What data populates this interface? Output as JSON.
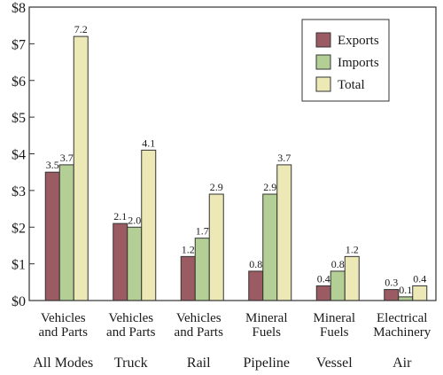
{
  "chart_data": {
    "type": "bar",
    "categories": [
      {
        "lines": [
          "Vehicles",
          "and Parts"
        ],
        "mode": "All Modes"
      },
      {
        "lines": [
          "Vehicles",
          "and Parts"
        ],
        "mode": "Truck"
      },
      {
        "lines": [
          "Vehicles",
          "and Parts"
        ],
        "mode": "Rail"
      },
      {
        "lines": [
          "Mineral",
          "Fuels"
        ],
        "mode": "Pipeline"
      },
      {
        "lines": [
          "Mineral",
          "Fuels"
        ],
        "mode": "Vessel"
      },
      {
        "lines": [
          "Electrical",
          "Machinery"
        ],
        "mode": "Air"
      }
    ],
    "series": [
      {
        "name": "Exports",
        "color": "#9b5b63",
        "values": [
          3.5,
          2.1,
          1.2,
          0.8,
          0.4,
          0.3
        ],
        "labels": [
          "3.5",
          "2.1",
          "1.2",
          "0.8",
          "0.4",
          "0.3"
        ]
      },
      {
        "name": "Imports",
        "color": "#b3cf96",
        "values": [
          3.7,
          2.0,
          1.7,
          2.9,
          0.8,
          0.1
        ],
        "labels": [
          "3.7",
          "2.0",
          "1.7",
          "2.9",
          "0.8",
          "0.1"
        ]
      },
      {
        "name": "Total",
        "color": "#ece9b6",
        "values": [
          7.2,
          4.1,
          2.9,
          3.7,
          1.2,
          0.4
        ],
        "labels": [
          "7.2",
          "4.1",
          "2.9",
          "3.7",
          "1.2",
          "0.4"
        ]
      }
    ],
    "yticks": [
      {
        "value": 0,
        "label": "$0"
      },
      {
        "value": 1,
        "label": "$1"
      },
      {
        "value": 2,
        "label": "$2"
      },
      {
        "value": 3,
        "label": "$3"
      },
      {
        "value": 4,
        "label": "$4"
      },
      {
        "value": 5,
        "label": "$5"
      },
      {
        "value": 6,
        "label": "$6"
      },
      {
        "value": 7,
        "label": "$7"
      },
      {
        "value": 8,
        "label": "$8"
      }
    ],
    "ylim": [
      0,
      8
    ],
    "title": "",
    "xlabel": "",
    "ylabel": "",
    "grid": false,
    "legend_position": "top-right"
  }
}
